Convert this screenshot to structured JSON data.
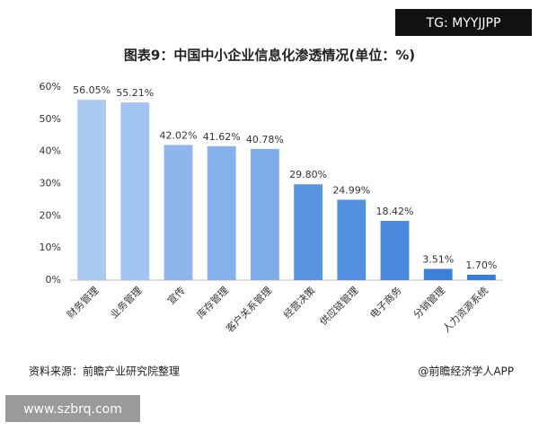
{
  "chart_data": {
    "type": "bar",
    "title": "图表9：中国中小企业信息化渗透情况(单位：%)",
    "categories": [
      "财务管理",
      "业务管理",
      "宣传",
      "库存管理",
      "客户关系管理",
      "经营决策",
      "供应链管理",
      "电子商务",
      "分销管理",
      "人力资源系统"
    ],
    "values": [
      56.05,
      55.21,
      42.02,
      41.62,
      40.78,
      29.8,
      24.99,
      18.42,
      3.51,
      1.7
    ],
    "value_labels": [
      "56.05%",
      "55.21%",
      "42.02%",
      "41.62%",
      "40.78%",
      "29.80%",
      "24.99%",
      "18.42%",
      "3.51%",
      "1.70%"
    ],
    "colors": [
      "#a9c9f1",
      "#a2c4f0",
      "#8cb6ec",
      "#86b2eb",
      "#7eadea",
      "#5a95e2",
      "#5490e0",
      "#4a89de",
      "#3d80da",
      "#3a7dd8"
    ],
    "ylim": [
      0,
      60
    ],
    "yticks": [
      {
        "value": 0,
        "label": "0%"
      },
      {
        "value": 10,
        "label": "10%"
      },
      {
        "value": 20,
        "label": "20%"
      },
      {
        "value": 30,
        "label": "30%"
      },
      {
        "value": 40,
        "label": "40%"
      },
      {
        "value": 50,
        "label": "50%"
      },
      {
        "value": 60,
        "label": "60%"
      }
    ],
    "source": "资料来源：前瞻产业研究院整理",
    "credit": "@前瞻经济学人APP",
    "watermark_top": "TG: MYYJJPP",
    "watermark_bottom": "www.szbrq.com"
  }
}
